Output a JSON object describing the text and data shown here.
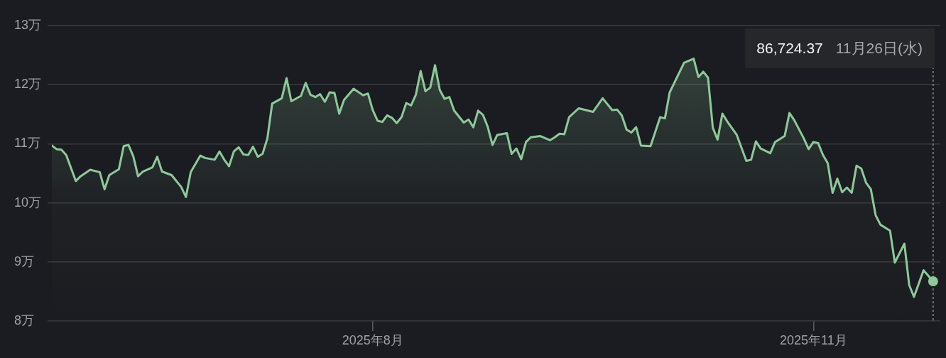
{
  "chart_data": {
    "type": "area",
    "x": [
      "2025-05-26",
      "2025-05-27",
      "2025-05-28",
      "2025-05-29",
      "2025-05-31",
      "2025-06-01",
      "2025-06-03",
      "2025-06-05",
      "2025-06-06",
      "2025-06-07",
      "2025-06-09",
      "2025-06-10",
      "2025-06-11",
      "2025-06-12",
      "2025-06-13",
      "2025-06-14",
      "2025-06-16",
      "2025-06-17",
      "2025-06-18",
      "2025-06-20",
      "2025-06-22",
      "2025-06-23",
      "2025-06-24",
      "2025-06-26",
      "2025-06-27",
      "2025-06-29",
      "2025-06-30",
      "2025-07-01",
      "2025-07-02",
      "2025-07-03",
      "2025-07-04",
      "2025-07-05",
      "2025-07-06",
      "2025-07-07",
      "2025-07-08",
      "2025-07-09",
      "2025-07-10",
      "2025-07-11",
      "2025-07-13",
      "2025-07-14",
      "2025-07-15",
      "2025-07-17",
      "2025-07-18",
      "2025-07-19",
      "2025-07-20",
      "2025-07-21",
      "2025-07-22",
      "2025-07-23",
      "2025-07-24",
      "2025-07-25",
      "2025-07-26",
      "2025-07-28",
      "2025-07-30",
      "2025-07-31",
      "2025-08-01",
      "2025-08-02",
      "2025-08-03",
      "2025-08-04",
      "2025-08-05",
      "2025-08-06",
      "2025-08-07",
      "2025-08-08",
      "2025-08-09",
      "2025-08-10",
      "2025-08-11",
      "2025-08-12",
      "2025-08-13",
      "2025-08-14",
      "2025-08-15",
      "2025-08-16",
      "2025-08-17",
      "2025-08-18",
      "2025-08-20",
      "2025-08-21",
      "2025-08-22",
      "2025-08-23",
      "2025-08-24",
      "2025-08-25",
      "2025-08-26",
      "2025-08-27",
      "2025-08-29",
      "2025-08-30",
      "2025-08-31",
      "2025-09-01",
      "2025-09-02",
      "2025-09-03",
      "2025-09-05",
      "2025-09-07",
      "2025-09-08",
      "2025-09-09",
      "2025-09-10",
      "2025-09-11",
      "2025-09-13",
      "2025-09-16",
      "2025-09-18",
      "2025-09-20",
      "2025-09-21",
      "2025-09-22",
      "2025-09-23",
      "2025-09-24",
      "2025-09-25",
      "2025-09-26",
      "2025-09-28",
      "2025-09-30",
      "2025-10-01",
      "2025-10-02",
      "2025-10-05",
      "2025-10-07",
      "2025-10-08",
      "2025-10-09",
      "2025-10-10",
      "2025-10-11",
      "2025-10-12",
      "2025-10-13",
      "2025-10-14",
      "2025-10-16",
      "2025-10-17",
      "2025-10-18",
      "2025-10-19",
      "2025-10-20",
      "2025-10-21",
      "2025-10-23",
      "2025-10-24",
      "2025-10-26",
      "2025-10-27",
      "2025-10-28",
      "2025-10-30",
      "2025-10-31",
      "2025-11-01",
      "2025-11-02",
      "2025-11-03",
      "2025-11-04",
      "2025-11-05",
      "2025-11-06",
      "2025-11-07",
      "2025-11-08",
      "2025-11-09",
      "2025-11-10",
      "2025-11-11",
      "2025-11-12",
      "2025-11-13",
      "2025-11-14",
      "2025-11-15",
      "2025-11-17",
      "2025-11-18",
      "2025-11-20",
      "2025-11-21",
      "2025-11-22",
      "2025-11-24",
      "2025-11-26"
    ],
    "values": [
      10.97,
      10.91,
      10.9,
      10.81,
      10.37,
      10.45,
      10.56,
      10.52,
      10.23,
      10.47,
      10.57,
      10.96,
      10.98,
      10.79,
      10.45,
      10.53,
      10.6,
      10.78,
      10.53,
      10.47,
      10.27,
      10.1,
      10.52,
      10.8,
      10.76,
      10.73,
      10.87,
      10.73,
      10.62,
      10.87,
      10.94,
      10.82,
      10.81,
      10.95,
      10.78,
      10.83,
      11.09,
      11.68,
      11.77,
      12.11,
      11.72,
      11.81,
      12.03,
      11.83,
      11.79,
      11.84,
      11.71,
      11.87,
      11.86,
      11.51,
      11.74,
      11.93,
      11.82,
      11.85,
      11.57,
      11.39,
      11.37,
      11.48,
      11.44,
      11.35,
      11.45,
      11.69,
      11.65,
      11.83,
      12.23,
      11.89,
      11.95,
      12.33,
      11.91,
      11.76,
      11.79,
      11.56,
      11.36,
      11.41,
      11.28,
      11.56,
      11.49,
      11.29,
      10.98,
      11.15,
      11.18,
      10.83,
      10.92,
      10.74,
      11.03,
      11.11,
      11.13,
      11.06,
      11.11,
      11.17,
      11.16,
      11.45,
      11.6,
      11.54,
      11.77,
      11.57,
      11.58,
      11.48,
      11.24,
      11.19,
      11.28,
      10.97,
      10.96,
      11.45,
      11.43,
      11.87,
      12.37,
      12.44,
      12.13,
      12.22,
      12.12,
      11.27,
      11.07,
      11.51,
      11.38,
      11.15,
      10.93,
      10.71,
      10.73,
      11.04,
      10.92,
      10.84,
      11.03,
      11.13,
      11.52,
      11.4,
      11.09,
      10.91,
      11.03,
      11.01,
      10.81,
      10.67,
      10.17,
      10.41,
      10.18,
      10.26,
      10.17,
      10.63,
      10.58,
      10.34,
      10.23,
      9.79,
      9.63,
      9.53,
      8.99,
      9.31,
      8.61,
      8.41,
      8.86,
      8.672437
    ],
    "color": "#8ec99a",
    "xlim": [
      "2025-05-26",
      "2025-11-27T12:00"
    ],
    "xticks": [
      {
        "value": "2025-08-01",
        "label": "2025年8月"
      },
      {
        "value": "2025-11-01",
        "label": "2025年11月"
      }
    ],
    "ylim": [
      8,
      13
    ],
    "yticks": [
      {
        "value": 8,
        "label": "8万"
      },
      {
        "value": 9,
        "label": "9万"
      },
      {
        "value": 10,
        "label": "10万"
      },
      {
        "value": 11,
        "label": "11万"
      },
      {
        "value": 12,
        "label": "12万"
      },
      {
        "value": 13,
        "label": "13万"
      }
    ],
    "grid": "y",
    "ref_lines": [
      {
        "axis": "x",
        "value": "2025-11-26",
        "line_style": "dotted",
        "color": "#8b8c91"
      }
    ],
    "annotations": [
      "86,724.37",
      "11月26日(水)"
    ]
  }
}
